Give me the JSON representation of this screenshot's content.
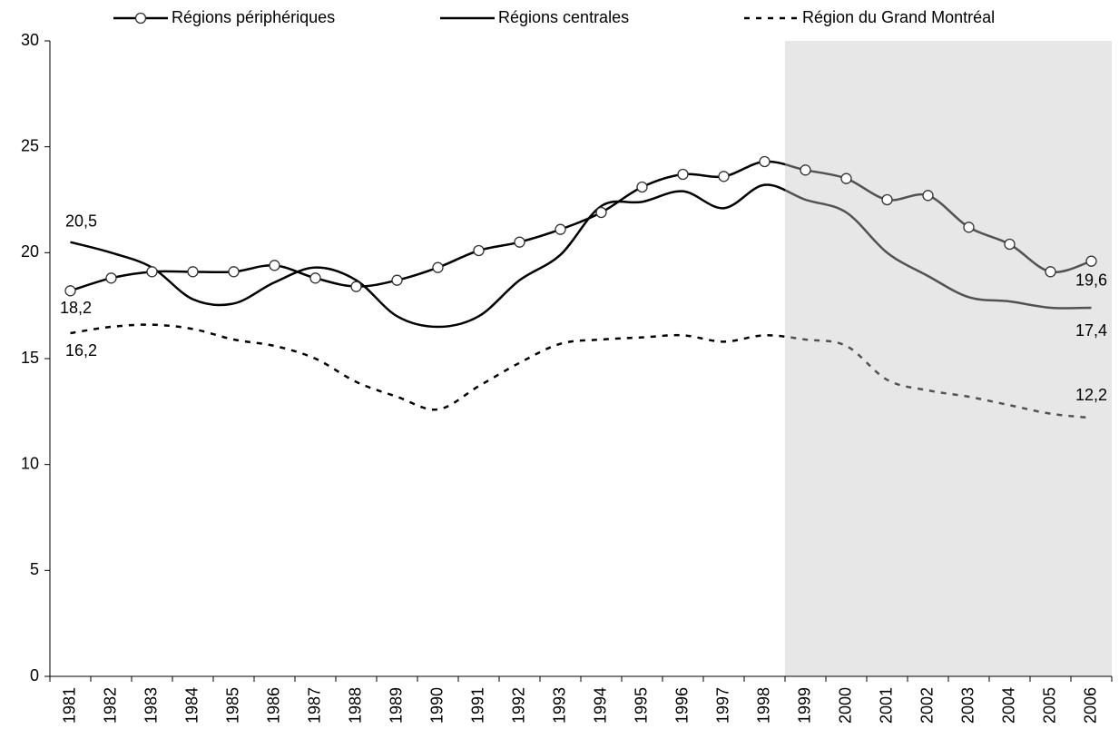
{
  "chart_data": {
    "type": "line",
    "categories": [
      "1981",
      "1982",
      "1983",
      "1984",
      "1985",
      "1986",
      "1987",
      "1988",
      "1989",
      "1990",
      "1991",
      "1992",
      "1993",
      "1994",
      "1995",
      "1996",
      "1997",
      "1998",
      "1999",
      "2000",
      "2001",
      "2002",
      "2003",
      "2004",
      "2005",
      "2006"
    ],
    "series": [
      {
        "name": "Régions périphériques",
        "color": "#000000",
        "marker": "circle",
        "dash": "solid",
        "values": [
          18.2,
          18.8,
          19.1,
          19.1,
          19.1,
          19.4,
          18.8,
          18.4,
          18.7,
          19.3,
          20.1,
          20.5,
          21.1,
          21.9,
          23.1,
          23.7,
          23.6,
          24.3,
          23.9,
          23.5,
          22.5,
          22.7,
          21.2,
          20.4,
          19.1,
          19.6
        ],
        "value_labels": [
          "18,2",
          null,
          null,
          null,
          null,
          null,
          null,
          null,
          null,
          null,
          null,
          null,
          null,
          null,
          null,
          null,
          null,
          null,
          null,
          null,
          null,
          null,
          null,
          null,
          null,
          "19,6"
        ]
      },
      {
        "name": "Régions centrales",
        "color": "#000000",
        "marker": "none",
        "dash": "solid",
        "values": [
          20.5,
          20.0,
          19.3,
          17.8,
          17.6,
          18.6,
          19.3,
          18.7,
          17.0,
          16.5,
          17.0,
          18.7,
          19.9,
          22.2,
          22.4,
          22.9,
          22.1,
          23.2,
          22.5,
          21.9,
          20.0,
          18.9,
          17.9,
          17.7,
          17.4,
          17.4
        ],
        "value_labels": [
          "20,5",
          null,
          null,
          null,
          null,
          null,
          null,
          null,
          null,
          null,
          null,
          null,
          null,
          null,
          null,
          null,
          null,
          null,
          null,
          null,
          null,
          null,
          null,
          null,
          null,
          "17,4"
        ]
      },
      {
        "name": "Région du Grand Montréal",
        "color": "#000000",
        "marker": "none",
        "dash": "dashed",
        "values": [
          16.2,
          16.5,
          16.6,
          16.4,
          15.9,
          15.6,
          15.0,
          13.9,
          13.2,
          12.6,
          13.7,
          14.8,
          15.7,
          15.9,
          16.0,
          16.1,
          15.8,
          16.1,
          15.9,
          15.6,
          14.0,
          13.5,
          13.2,
          12.8,
          12.4,
          12.2
        ],
        "value_labels": [
          "16,2",
          null,
          null,
          null,
          null,
          null,
          null,
          null,
          null,
          null,
          null,
          null,
          null,
          null,
          null,
          null,
          null,
          null,
          null,
          null,
          null,
          null,
          null,
          null,
          null,
          "12,2"
        ]
      }
    ],
    "ylim": [
      0,
      30
    ],
    "yticks": [
      0,
      5,
      10,
      15,
      20,
      25,
      30
    ],
    "shaded_range": [
      "1999",
      "2006"
    ],
    "legend": "top",
    "grid": false
  }
}
